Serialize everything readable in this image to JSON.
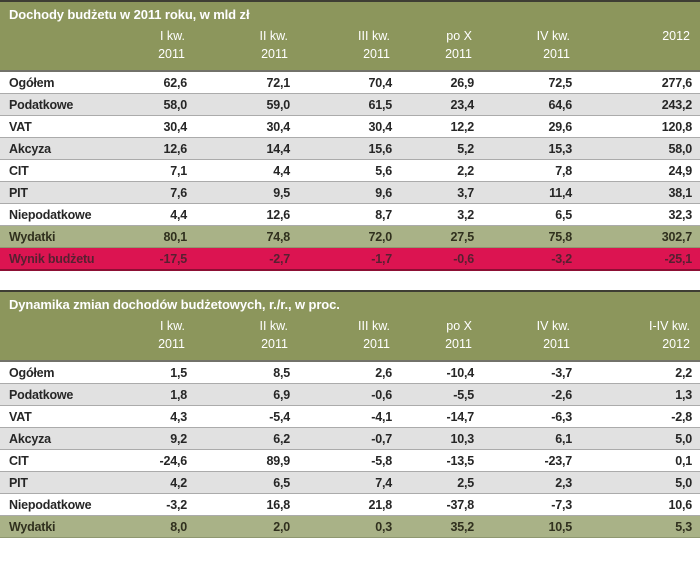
{
  "page": {
    "background": "#ffffff"
  },
  "colors": {
    "olive_header": "#8c965c",
    "olive_emphasis_row": "#a9b287",
    "red_emphasis_row": "#dc1451",
    "red_row_text": "#572031",
    "gray_row": "#e1e1e1",
    "white_row": "#ffffff",
    "row_border": "#ababab",
    "top_border": "#3e3e34",
    "header_text": "#ffffff",
    "body_text": "#262626"
  },
  "tables": [
    {
      "title": "Dochody budżetu w 2011 roku, w mld zł",
      "columns": [
        "I kw.\n2011",
        "II kw.\n2011",
        "III kw.\n2011",
        "po X\n2011",
        "IV kw.\n2011",
        "2012"
      ],
      "rows": [
        {
          "label": "Ogółem",
          "values": [
            "62,6",
            "72,1",
            "70,4",
            "26,9",
            "72,5",
            "277,6"
          ],
          "style": "white"
        },
        {
          "label": "Podatkowe",
          "values": [
            "58,0",
            "59,0",
            "61,5",
            "23,4",
            "64,6",
            "243,2"
          ],
          "style": "gray"
        },
        {
          "label": "VAT",
          "values": [
            "30,4",
            "30,4",
            "30,4",
            "12,2",
            "29,6",
            "120,8"
          ],
          "style": "white"
        },
        {
          "label": "Akcyza",
          "values": [
            "12,6",
            "14,4",
            "15,6",
            "5,2",
            "15,3",
            "58,0"
          ],
          "style": "gray"
        },
        {
          "label": "CIT",
          "values": [
            "7,1",
            "4,4",
            "5,6",
            "2,2",
            "7,8",
            "24,9"
          ],
          "style": "white"
        },
        {
          "label": "PIT",
          "values": [
            "7,6",
            "9,5",
            "9,6",
            "3,7",
            "11,4",
            "38,1"
          ],
          "style": "gray"
        },
        {
          "label": "Niepodatkowe",
          "values": [
            "4,4",
            "12,6",
            "8,7",
            "3,2",
            "6,5",
            "32,3"
          ],
          "style": "white"
        },
        {
          "label": "Wydatki",
          "values": [
            "80,1",
            "74,8",
            "72,0",
            "27,5",
            "75,8",
            "302,7"
          ],
          "style": "green"
        },
        {
          "label": "Wynik budżetu",
          "values": [
            "-17,5",
            "-2,7",
            "-1,7",
            "-0,6",
            "-3,2",
            "-25,1"
          ],
          "style": "red"
        }
      ]
    },
    {
      "title": "Dynamika zmian dochodów budżetowych, r./r., w proc.",
      "columns": [
        "I kw.\n2011",
        "II kw.\n2011",
        "III kw.\n2011",
        "po X\n2011",
        "IV kw.\n2011",
        "I-IV kw.\n2012"
      ],
      "rows": [
        {
          "label": "Ogółem",
          "values": [
            "1,5",
            "8,5",
            "2,6",
            "-10,4",
            "-3,7",
            "2,2"
          ],
          "style": "white"
        },
        {
          "label": "Podatkowe",
          "values": [
            "1,8",
            "6,9",
            "-0,6",
            "-5,5",
            "-2,6",
            "1,3"
          ],
          "style": "gray"
        },
        {
          "label": "VAT",
          "values": [
            "4,3",
            "-5,4",
            "-4,1",
            "-14,7",
            "-6,3",
            "-2,8"
          ],
          "style": "white"
        },
        {
          "label": "Akcyza",
          "values": [
            "9,2",
            "6,2",
            "-0,7",
            "10,3",
            "6,1",
            "5,0"
          ],
          "style": "gray"
        },
        {
          "label": "CIT",
          "values": [
            "-24,6",
            "89,9",
            "-5,8",
            "-13,5",
            "-23,7",
            "0,1"
          ],
          "style": "white"
        },
        {
          "label": "PIT",
          "values": [
            "4,2",
            "6,5",
            "7,4",
            "2,5",
            "2,3",
            "5,0"
          ],
          "style": "gray"
        },
        {
          "label": "Niepodatkowe",
          "values": [
            "-3,2",
            "16,8",
            "21,8",
            "-37,8",
            "-7,3",
            "10,6"
          ],
          "style": "white"
        },
        {
          "label": "Wydatki",
          "values": [
            "8,0",
            "2,0",
            "0,3",
            "35,2",
            "10,5",
            "5,3"
          ],
          "style": "green"
        }
      ]
    }
  ],
  "chart_data": [
    {
      "type": "table",
      "title": "Dochody budżetu w 2011 roku, w mld zł",
      "columns": [
        "I kw. 2011",
        "II kw. 2011",
        "III kw. 2011",
        "po X 2011",
        "IV kw. 2011",
        "2012"
      ],
      "rows": [
        {
          "name": "Ogółem",
          "values": [
            62.6,
            72.1,
            70.4,
            26.9,
            72.5,
            277.6
          ]
        },
        {
          "name": "Podatkowe",
          "values": [
            58.0,
            59.0,
            61.5,
            23.4,
            64.6,
            243.2
          ]
        },
        {
          "name": "VAT",
          "values": [
            30.4,
            30.4,
            30.4,
            12.2,
            29.6,
            120.8
          ]
        },
        {
          "name": "Akcyza",
          "values": [
            12.6,
            14.4,
            15.6,
            5.2,
            15.3,
            58.0
          ]
        },
        {
          "name": "CIT",
          "values": [
            7.1,
            4.4,
            5.6,
            2.2,
            7.8,
            24.9
          ]
        },
        {
          "name": "PIT",
          "values": [
            7.6,
            9.5,
            9.6,
            3.7,
            11.4,
            38.1
          ]
        },
        {
          "name": "Niepodatkowe",
          "values": [
            4.4,
            12.6,
            8.7,
            3.2,
            6.5,
            32.3
          ]
        },
        {
          "name": "Wydatki",
          "values": [
            80.1,
            74.8,
            72.0,
            27.5,
            75.8,
            302.7
          ]
        },
        {
          "name": "Wynik budżetu",
          "values": [
            -17.5,
            -2.7,
            -1.7,
            -0.6,
            -3.2,
            -25.1
          ]
        }
      ]
    },
    {
      "type": "table",
      "title": "Dynamika zmian dochodów budżetowych, r./r., w proc.",
      "columns": [
        "I kw. 2011",
        "II kw. 2011",
        "III kw. 2011",
        "po X 2011",
        "IV kw. 2011",
        "I-IV kw. 2012"
      ],
      "rows": [
        {
          "name": "Ogółem",
          "values": [
            1.5,
            8.5,
            2.6,
            -10.4,
            -3.7,
            2.2
          ]
        },
        {
          "name": "Podatkowe",
          "values": [
            1.8,
            6.9,
            -0.6,
            -5.5,
            -2.6,
            1.3
          ]
        },
        {
          "name": "VAT",
          "values": [
            4.3,
            -5.4,
            -4.1,
            -14.7,
            -6.3,
            -2.8
          ]
        },
        {
          "name": "Akcyza",
          "values": [
            9.2,
            6.2,
            -0.7,
            10.3,
            6.1,
            5.0
          ]
        },
        {
          "name": "CIT",
          "values": [
            -24.6,
            89.9,
            -5.8,
            -13.5,
            -23.7,
            0.1
          ]
        },
        {
          "name": "PIT",
          "values": [
            4.2,
            6.5,
            7.4,
            2.5,
            2.3,
            5.0
          ]
        },
        {
          "name": "Niepodatkowe",
          "values": [
            -3.2,
            16.8,
            21.8,
            -37.8,
            -7.3,
            10.6
          ]
        },
        {
          "name": "Wydatki",
          "values": [
            8.0,
            2.0,
            0.3,
            35.2,
            10.5,
            5.3
          ]
        }
      ]
    }
  ]
}
